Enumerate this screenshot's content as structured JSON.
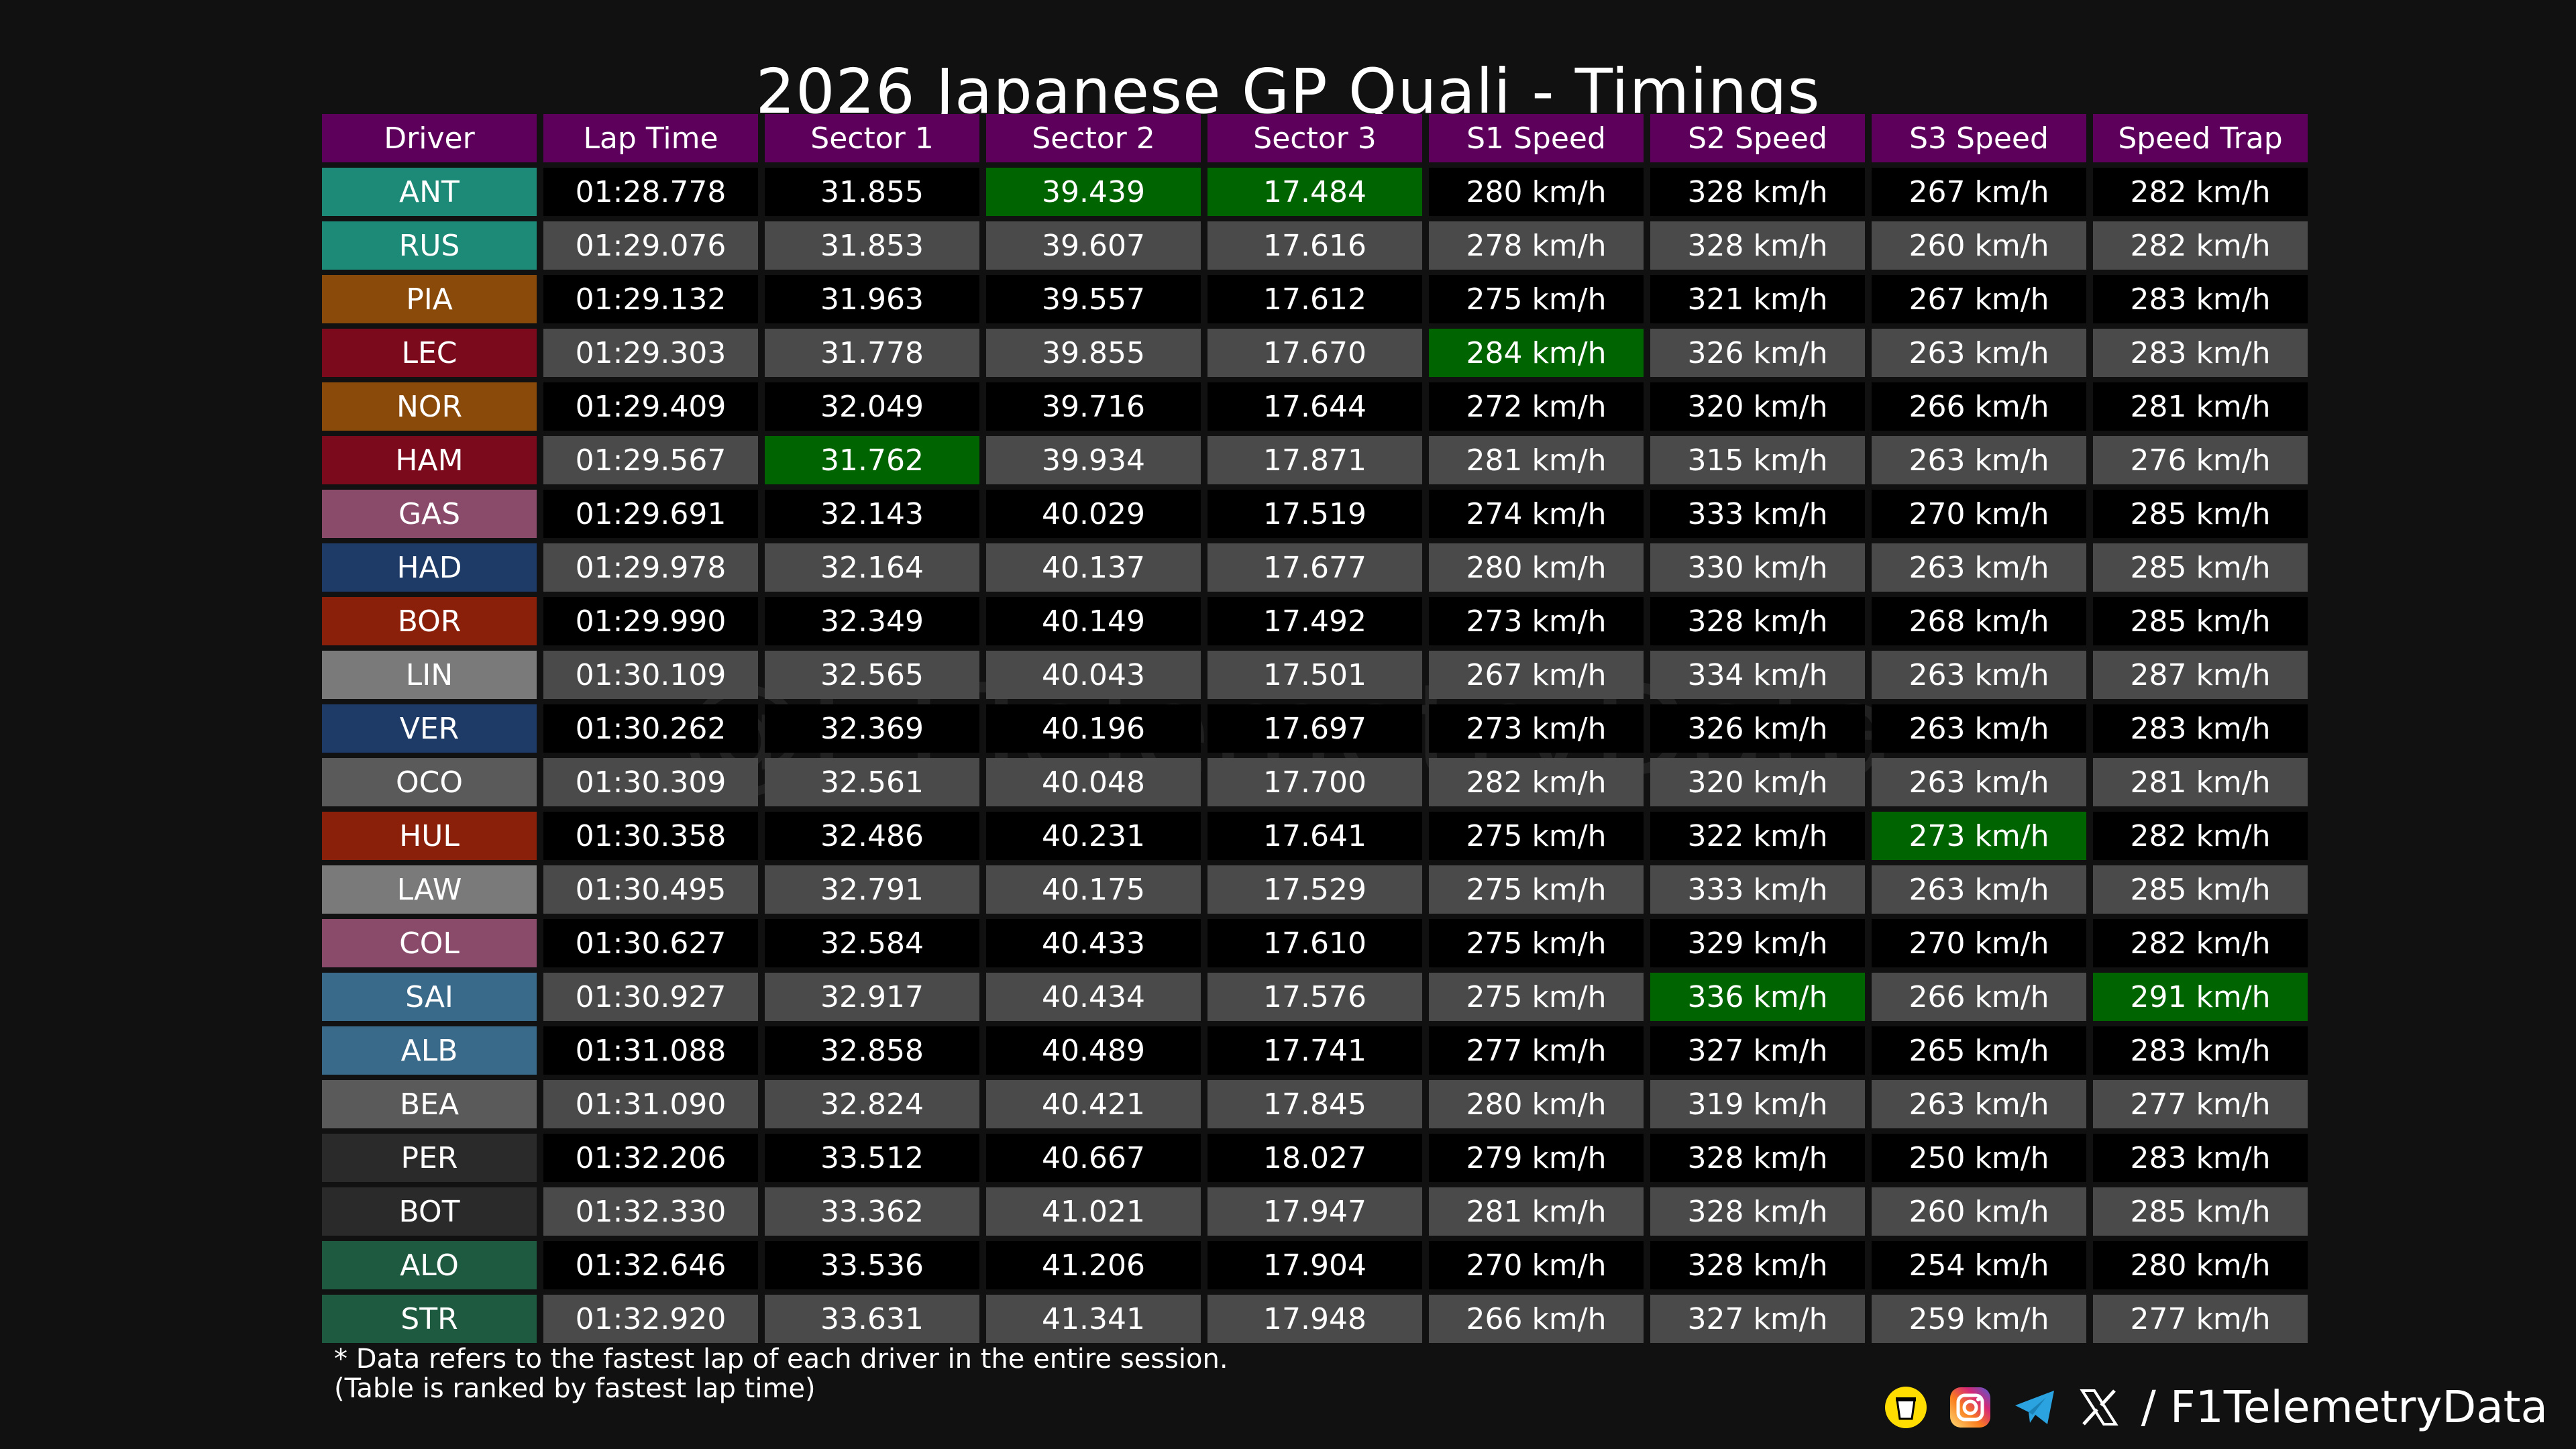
{
  "title": "2026 Japanese GP Quali - Timings",
  "watermark": "@F1TelemetryData",
  "columns": [
    "Driver",
    "Lap Time",
    "Sector 1",
    "Sector 2",
    "Sector 3",
    "S1 Speed",
    "S2 Speed",
    "S3 Speed",
    "Speed Trap"
  ],
  "rows": [
    [
      "ANT",
      "01:28.778",
      "31.855",
      "39.439",
      "17.484",
      "280 km/h",
      "328 km/h",
      "267 km/h",
      "282 km/h"
    ],
    [
      "RUS",
      "01:29.076",
      "31.853",
      "39.607",
      "17.616",
      "278 km/h",
      "328 km/h",
      "260 km/h",
      "282 km/h"
    ],
    [
      "PIA",
      "01:29.132",
      "31.963",
      "39.557",
      "17.612",
      "275 km/h",
      "321 km/h",
      "267 km/h",
      "283 km/h"
    ],
    [
      "LEC",
      "01:29.303",
      "31.778",
      "39.855",
      "17.670",
      "284 km/h",
      "326 km/h",
      "263 km/h",
      "283 km/h"
    ],
    [
      "NOR",
      "01:29.409",
      "32.049",
      "39.716",
      "17.644",
      "272 km/h",
      "320 km/h",
      "266 km/h",
      "281 km/h"
    ],
    [
      "HAM",
      "01:29.567",
      "31.762",
      "39.934",
      "17.871",
      "281 km/h",
      "315 km/h",
      "263 km/h",
      "276 km/h"
    ],
    [
      "GAS",
      "01:29.691",
      "32.143",
      "40.029",
      "17.519",
      "274 km/h",
      "333 km/h",
      "270 km/h",
      "285 km/h"
    ],
    [
      "HAD",
      "01:29.978",
      "32.164",
      "40.137",
      "17.677",
      "280 km/h",
      "330 km/h",
      "263 km/h",
      "285 km/h"
    ],
    [
      "BOR",
      "01:29.990",
      "32.349",
      "40.149",
      "17.492",
      "273 km/h",
      "328 km/h",
      "268 km/h",
      "285 km/h"
    ],
    [
      "LIN",
      "01:30.109",
      "32.565",
      "40.043",
      "17.501",
      "267 km/h",
      "334 km/h",
      "263 km/h",
      "287 km/h"
    ],
    [
      "VER",
      "01:30.262",
      "32.369",
      "40.196",
      "17.697",
      "273 km/h",
      "326 km/h",
      "263 km/h",
      "283 km/h"
    ],
    [
      "OCO",
      "01:30.309",
      "32.561",
      "40.048",
      "17.700",
      "282 km/h",
      "320 km/h",
      "263 km/h",
      "281 km/h"
    ],
    [
      "HUL",
      "01:30.358",
      "32.486",
      "40.231",
      "17.641",
      "275 km/h",
      "322 km/h",
      "273 km/h",
      "282 km/h"
    ],
    [
      "LAW",
      "01:30.495",
      "32.791",
      "40.175",
      "17.529",
      "275 km/h",
      "333 km/h",
      "263 km/h",
      "285 km/h"
    ],
    [
      "COL",
      "01:30.627",
      "32.584",
      "40.433",
      "17.610",
      "275 km/h",
      "329 km/h",
      "270 km/h",
      "282 km/h"
    ],
    [
      "SAI",
      "01:30.927",
      "32.917",
      "40.434",
      "17.576",
      "275 km/h",
      "336 km/h",
      "266 km/h",
      "291 km/h"
    ],
    [
      "ALB",
      "01:31.088",
      "32.858",
      "40.489",
      "17.741",
      "277 km/h",
      "327 km/h",
      "265 km/h",
      "283 km/h"
    ],
    [
      "BEA",
      "01:31.090",
      "32.824",
      "40.421",
      "17.845",
      "280 km/h",
      "319 km/h",
      "263 km/h",
      "277 km/h"
    ],
    [
      "PER",
      "01:32.206",
      "33.512",
      "40.667",
      "18.027",
      "279 km/h",
      "328 km/h",
      "250 km/h",
      "283 km/h"
    ],
    [
      "BOT",
      "01:32.330",
      "33.362",
      "41.021",
      "17.947",
      "281 km/h",
      "328 km/h",
      "260 km/h",
      "285 km/h"
    ],
    [
      "ALO",
      "01:32.646",
      "33.536",
      "41.206",
      "17.904",
      "270 km/h",
      "328 km/h",
      "254 km/h",
      "280 km/h"
    ],
    [
      "STR",
      "01:32.920",
      "33.631",
      "41.341",
      "17.948",
      "266 km/h",
      "327 km/h",
      "259 km/h",
      "277 km/h"
    ]
  ],
  "driver_colors": [
    "#1d8a78",
    "#1d8a78",
    "#8a4a0a",
    "#7a0a1c",
    "#8a4a0a",
    "#7a0a1c",
    "#8a4a6a",
    "#1e3a66",
    "#8a1f0a",
    "#7a7a7a",
    "#1e3a66",
    "#5a5a5a",
    "#8a1f0a",
    "#7a7a7a",
    "#8a4a6a",
    "#3a6a8a",
    "#3a6a8a",
    "#5a5a5a",
    "#2a2a2a",
    "#2a2a2a",
    "#1e5a40",
    "#1e5a40"
  ],
  "best_cells": [
    [
      0,
      3
    ],
    [
      0,
      4
    ],
    [
      3,
      5
    ],
    [
      5,
      2
    ],
    [
      12,
      7
    ],
    [
      15,
      6
    ],
    [
      15,
      8
    ]
  ],
  "colors": {
    "background": "#111111",
    "header": "#5c005c",
    "row_even": "#000000",
    "row_odd": "#4a4a4a",
    "best": "#006400"
  },
  "footnote": {
    "line1": "* Data refers to the fastest lap of each driver in the entire session.",
    "line2": "(Table is ranked by fastest lap time)"
  },
  "brand": {
    "icons": [
      "bmc-icon",
      "instagram-icon",
      "telegram-icon",
      "x-icon"
    ],
    "text": "/ F1TelemetryData"
  }
}
